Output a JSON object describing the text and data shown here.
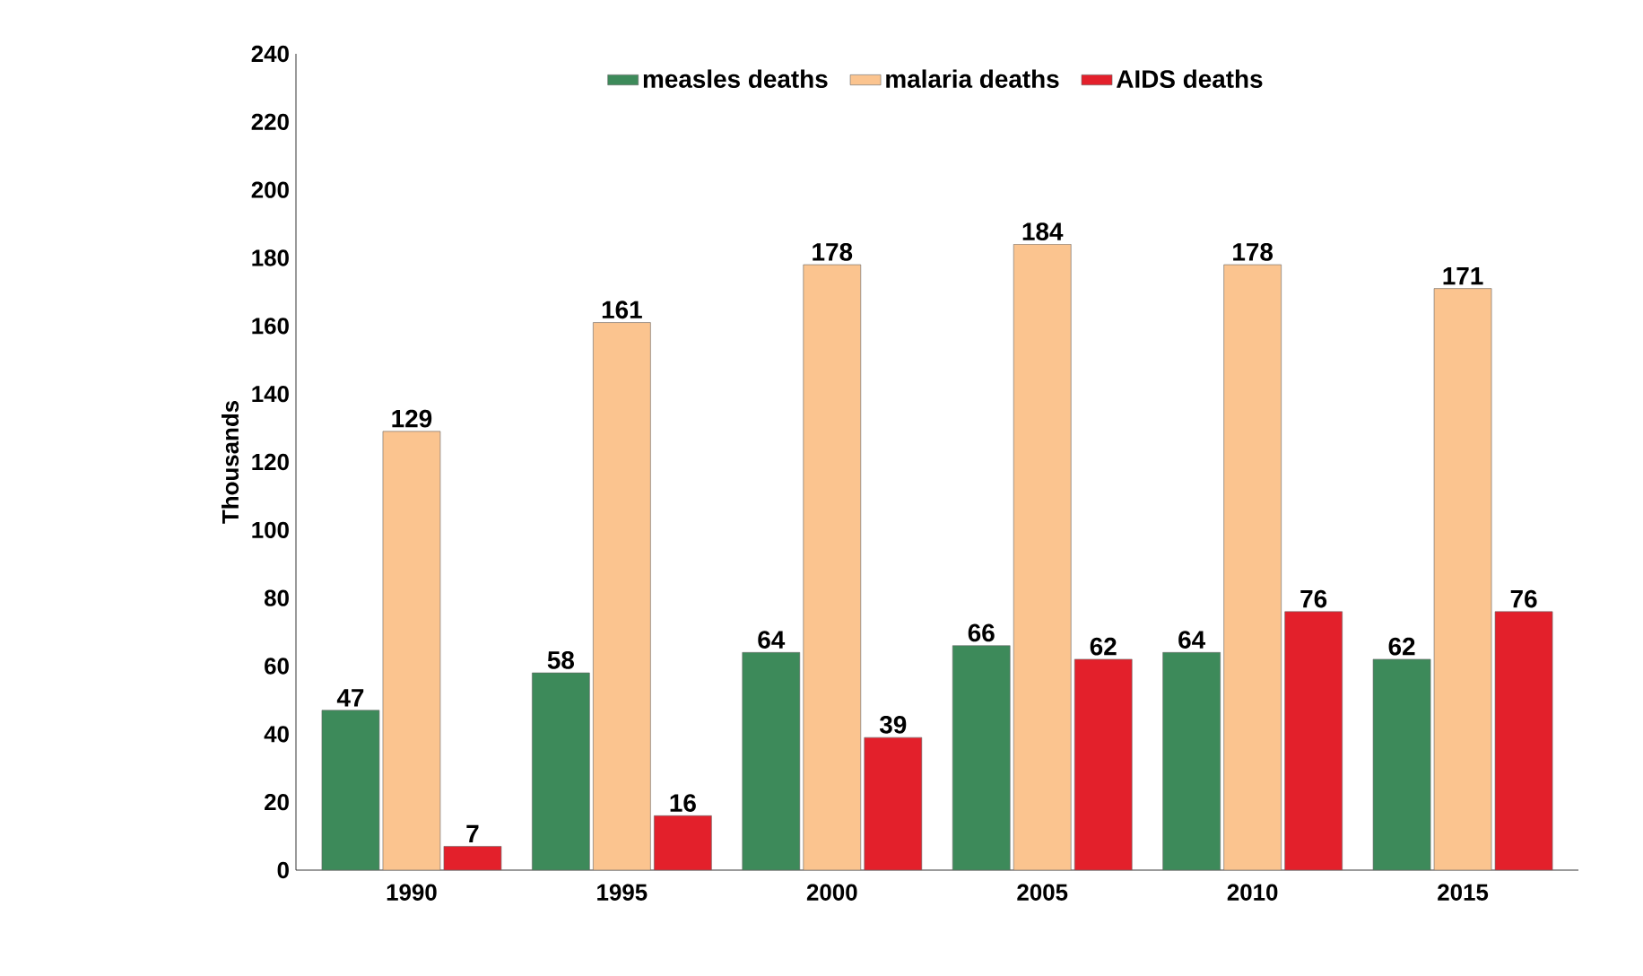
{
  "chart_data": {
    "type": "bar",
    "ylabel": "Thousands",
    "categories": [
      "1990",
      "1995",
      "2000",
      "2005",
      "2010",
      "2015"
    ],
    "series": [
      {
        "name": "measles deaths",
        "color": "#3d8a5a",
        "values": [
          47,
          58,
          64,
          66,
          64,
          62
        ]
      },
      {
        "name": "malaria deaths",
        "color": "#fbc48f",
        "values": [
          129,
          161,
          178,
          184,
          178,
          171
        ]
      },
      {
        "name": "AIDS deaths",
        "color": "#e3202b",
        "values": [
          7,
          16,
          39,
          62,
          76,
          76
        ]
      }
    ],
    "ylim": [
      0,
      240
    ],
    "yticks": [
      0,
      20,
      40,
      60,
      80,
      100,
      120,
      140,
      160,
      180,
      200,
      220,
      240
    ],
    "data_labels": true,
    "legend": "top",
    "grid": false
  }
}
